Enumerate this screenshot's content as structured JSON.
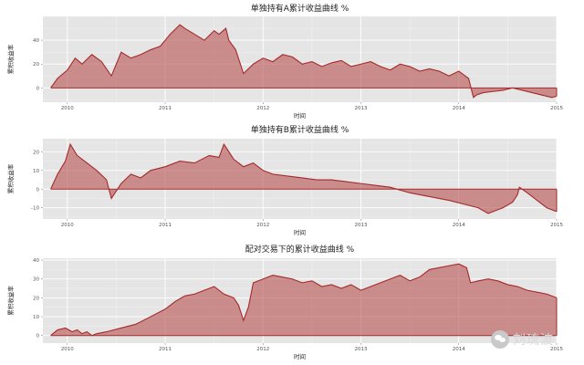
{
  "chart_data": [
    {
      "type": "area",
      "title": "单独持有A累计收益曲线 %",
      "xlabel": "时间",
      "ylabel": "累积收益率",
      "xlim": [
        2009.75,
        2015.0
      ],
      "ylim": [
        -12,
        60
      ],
      "y_ticks": [
        0,
        20,
        40
      ],
      "x_ticks": [
        "2010",
        "2011",
        "2012",
        "2013",
        "2014",
        "2015"
      ],
      "grid": true,
      "x": [
        2009.83,
        2009.9,
        2010.0,
        2010.08,
        2010.15,
        2010.25,
        2010.35,
        2010.45,
        2010.55,
        2010.65,
        2010.75,
        2010.85,
        2010.95,
        2011.05,
        2011.15,
        2011.2,
        2011.3,
        2011.4,
        2011.5,
        2011.55,
        2011.62,
        2011.65,
        2011.72,
        2011.8,
        2011.9,
        2012.0,
        2012.1,
        2012.2,
        2012.3,
        2012.4,
        2012.5,
        2012.6,
        2012.7,
        2012.8,
        2012.9,
        2013.0,
        2013.1,
        2013.2,
        2013.3,
        2013.4,
        2013.5,
        2013.6,
        2013.7,
        2013.8,
        2013.9,
        2014.0,
        2014.1,
        2014.15,
        2014.18,
        2014.25,
        2014.35,
        2014.45,
        2014.55,
        2014.65,
        2014.75,
        2014.85,
        2014.95,
        2015.0
      ],
      "series": [
        {
          "values": [
            0,
            8,
            15,
            25,
            20,
            28,
            22,
            10,
            30,
            25,
            28,
            32,
            35,
            45,
            53,
            50,
            45,
            40,
            48,
            45,
            50,
            40,
            32,
            12,
            20,
            25,
            22,
            28,
            26,
            20,
            22,
            18,
            21,
            23,
            18,
            20,
            22,
            18,
            15,
            20,
            18,
            14,
            16,
            14,
            10,
            14,
            8,
            -8,
            -6,
            -4,
            -3,
            -2,
            0,
            -2,
            -4,
            -6,
            -8,
            -7
          ]
        }
      ]
    },
    {
      "type": "area",
      "title": "单独持有B累计收益曲线 %",
      "xlabel": "时间",
      "ylabel": "累积收益率",
      "xlim": [
        2009.75,
        2015.0
      ],
      "ylim": [
        -16,
        27
      ],
      "y_ticks": [
        -10,
        0,
        10,
        20
      ],
      "x_ticks": [
        "2010",
        "2011",
        "2012",
        "2013",
        "2014",
        "2015"
      ],
      "grid": true,
      "x": [
        2009.83,
        2009.9,
        2009.98,
        2010.03,
        2010.1,
        2010.2,
        2010.3,
        2010.4,
        2010.45,
        2010.55,
        2010.65,
        2010.75,
        2010.85,
        2011.0,
        2011.15,
        2011.3,
        2011.45,
        2011.55,
        2011.6,
        2011.7,
        2011.8,
        2011.9,
        2012.0,
        2012.1,
        2012.25,
        2012.4,
        2012.55,
        2012.7,
        2012.85,
        2013.0,
        2013.15,
        2013.3,
        2013.5,
        2013.7,
        2013.9,
        2014.05,
        2014.2,
        2014.3,
        2014.45,
        2014.55,
        2014.6,
        2014.62,
        2014.7,
        2014.8,
        2014.9,
        2015.0
      ],
      "series": [
        {
          "values": [
            0,
            8,
            15,
            24,
            18,
            14,
            10,
            5,
            -5,
            3,
            8,
            6,
            10,
            12,
            15,
            14,
            18,
            17,
            24,
            16,
            12,
            14,
            10,
            8,
            7,
            6,
            5,
            5,
            4,
            3,
            2,
            1,
            -2,
            -4,
            -6,
            -8,
            -10,
            -13,
            -10,
            -7,
            -3,
            1,
            -2,
            -6,
            -10,
            -12
          ]
        }
      ]
    },
    {
      "type": "area",
      "title": "配对交易下的累计收益曲线 %",
      "xlabel": "时间",
      "ylabel": "累积收益率",
      "xlim": [
        2009.75,
        2015.0
      ],
      "ylim": [
        -4,
        41
      ],
      "y_ticks": [
        0,
        10,
        20,
        30,
        40
      ],
      "x_ticks": [
        "2010",
        "2011",
        "2012",
        "2013",
        "2014",
        "2015"
      ],
      "grid": true,
      "x": [
        2009.83,
        2009.9,
        2009.98,
        2010.05,
        2010.1,
        2010.15,
        2010.2,
        2010.25,
        2010.3,
        2010.4,
        2010.55,
        2010.7,
        2010.85,
        2011.0,
        2011.1,
        2011.2,
        2011.3,
        2011.4,
        2011.5,
        2011.6,
        2011.7,
        2011.75,
        2011.8,
        2011.85,
        2011.9,
        2012.0,
        2012.1,
        2012.2,
        2012.3,
        2012.4,
        2012.5,
        2012.6,
        2012.7,
        2012.8,
        2012.9,
        2013.0,
        2013.1,
        2013.2,
        2013.3,
        2013.4,
        2013.5,
        2013.6,
        2013.7,
        2013.8,
        2013.9,
        2014.0,
        2014.08,
        2014.12,
        2014.2,
        2014.3,
        2014.4,
        2014.5,
        2014.6,
        2014.7,
        2014.8,
        2014.9,
        2015.0
      ],
      "series": [
        {
          "values": [
            0,
            3,
            4,
            2,
            3,
            1,
            2,
            0,
            1,
            2,
            4,
            6,
            10,
            14,
            18,
            21,
            22,
            24,
            26,
            22,
            20,
            16,
            8,
            15,
            28,
            30,
            32,
            31,
            30,
            28,
            29,
            26,
            27,
            25,
            27,
            24,
            26,
            28,
            30,
            32,
            29,
            31,
            35,
            36,
            37,
            38,
            36,
            28,
            29,
            30,
            29,
            27,
            26,
            24,
            23,
            22,
            20
          ]
        }
      ]
    }
  ],
  "watermark": {
    "badge_icon": "wechat-icon",
    "text": "刘琉波"
  }
}
